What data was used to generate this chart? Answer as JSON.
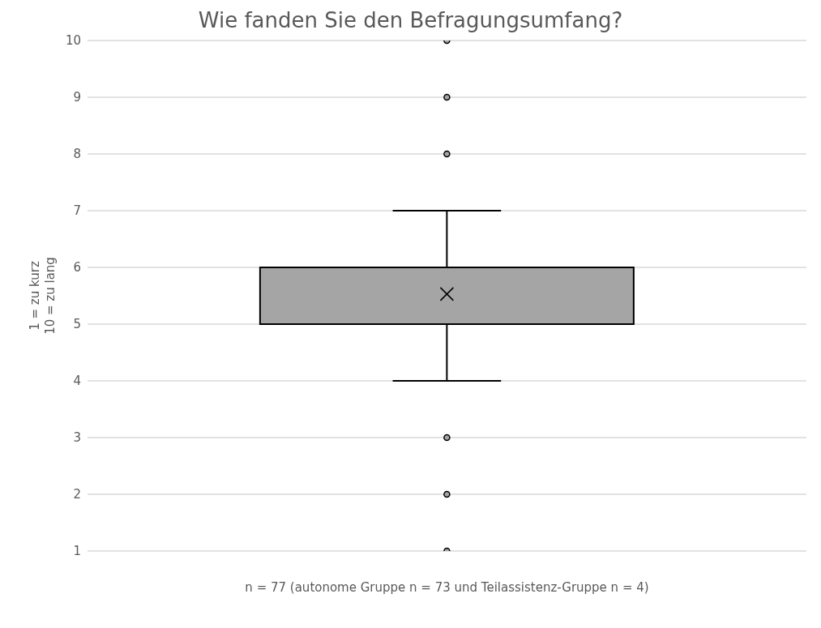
{
  "chart_data": {
    "type": "box",
    "title": "Wie fanden Sie den Befragungsumfang?",
    "xlabel": "n = 77 (autonome Gruppe n = 73 und Teilassistenz-Gruppe n = 4)",
    "ylabel": "1 = zu kurz\n10 = zu lang",
    "categories": [
      null
    ],
    "color": "#a5a5a5",
    "boxes": [
      {
        "low": 4,
        "q1": 5,
        "median": 6,
        "q3": 6,
        "high": 7,
        "mean": 5.53,
        "outliers": [
          1,
          2,
          3,
          8,
          9,
          10
        ]
      }
    ],
    "ylim": [
      1,
      10
    ],
    "yticks": [
      1,
      2,
      3,
      4,
      5,
      6,
      7,
      8,
      9,
      10
    ],
    "grid": "y"
  }
}
